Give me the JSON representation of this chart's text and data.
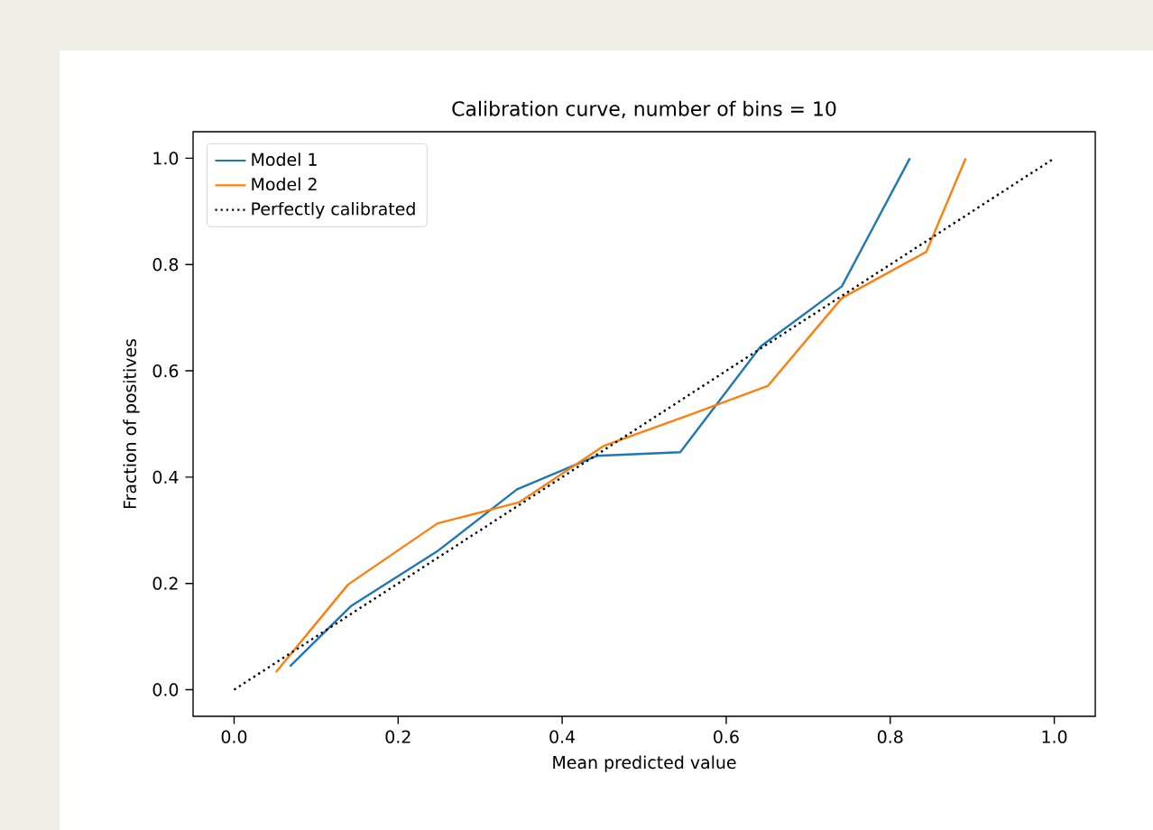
{
  "chart_data": {
    "type": "line",
    "title": "Calibration curve, number of bins = 10",
    "xlabel": "Mean predicted value",
    "ylabel": "Fraction of positives",
    "series": [
      {
        "name": "Model 1",
        "color": "#1f77b4",
        "x": [
          0.068,
          0.143,
          0.249,
          0.345,
          0.442,
          0.544,
          0.642,
          0.741,
          0.824
        ],
        "values": [
          0.044,
          0.158,
          0.262,
          0.377,
          0.44,
          0.447,
          0.646,
          0.759,
          1.0
        ]
      },
      {
        "name": "Model 2",
        "color": "#ff7f0e",
        "x": [
          0.051,
          0.139,
          0.248,
          0.348,
          0.451,
          0.55,
          0.651,
          0.741,
          0.844,
          0.892
        ],
        "values": [
          0.033,
          0.198,
          0.313,
          0.353,
          0.459,
          0.514,
          0.572,
          0.737,
          0.824,
          1.0
        ]
      },
      {
        "name": "Perfectly calibrated",
        "color": "#000000",
        "line_style": "dotted",
        "x": [
          0,
          1
        ],
        "values": [
          0,
          1
        ]
      }
    ],
    "xlim": [
      -0.05,
      1.05
    ],
    "ylim": [
      -0.05,
      1.05
    ],
    "xticks": [
      {
        "value": 0,
        "label": "0.0"
      },
      {
        "value": 0.2,
        "label": "0.2"
      },
      {
        "value": 0.4,
        "label": "0.4"
      },
      {
        "value": 0.6,
        "label": "0.6"
      },
      {
        "value": 0.8,
        "label": "0.8"
      },
      {
        "value": 1,
        "label": "1.0"
      }
    ],
    "yticks": [
      {
        "value": 0,
        "label": "0.0"
      },
      {
        "value": 0.2,
        "label": "0.2"
      },
      {
        "value": 0.4,
        "label": "0.4"
      },
      {
        "value": 0.6,
        "label": "0.6"
      },
      {
        "value": 0.8,
        "label": "0.8"
      },
      {
        "value": 1,
        "label": "1.0"
      }
    ],
    "legend": "top left",
    "line_style": "solid",
    "marker": "none",
    "grid": false
  }
}
